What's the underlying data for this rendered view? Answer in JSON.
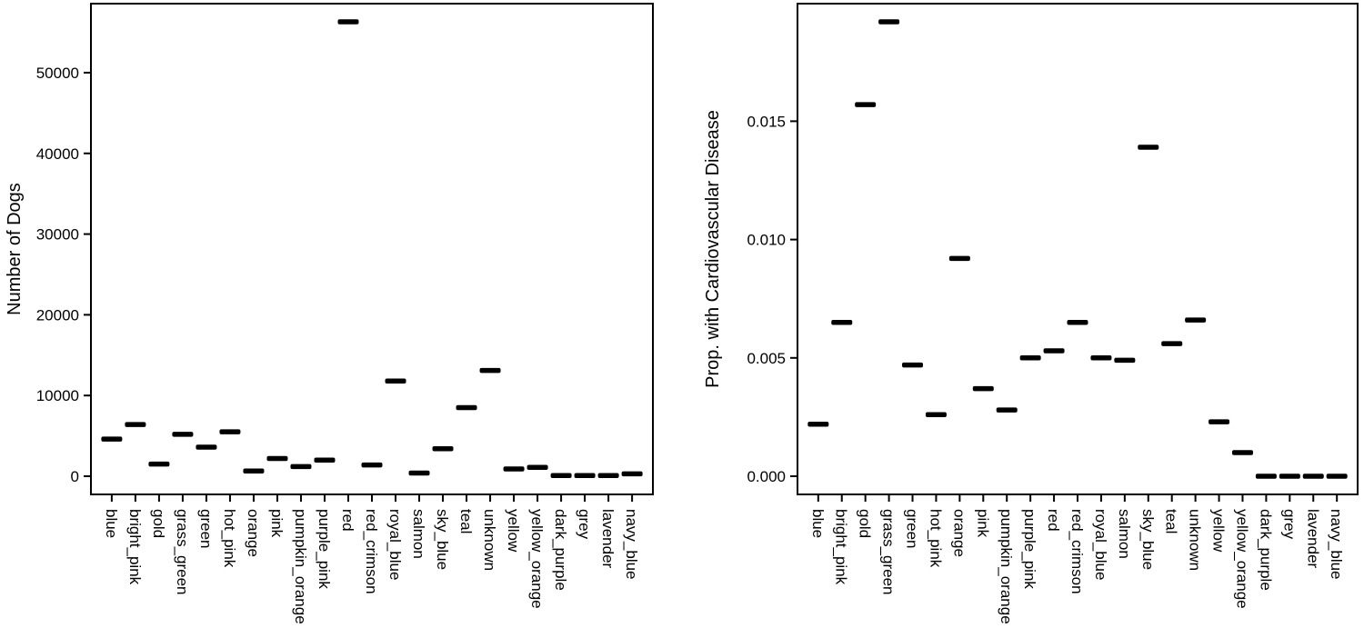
{
  "figure": {
    "background": "#ffffff",
    "ink": "#000000"
  },
  "chart_data": [
    {
      "type": "scatter",
      "marker": "horizontal-dash",
      "title": "",
      "xlabel": "",
      "ylabel": "Number of Dogs",
      "categories": [
        "blue",
        "bright_pink",
        "gold",
        "grass_green",
        "green",
        "hot_pink",
        "orange",
        "pink",
        "pumpkin_orange",
        "purple_pink",
        "red",
        "red_crimson",
        "royal_blue",
        "salmon",
        "sky_blue",
        "teal",
        "unknown",
        "yellow",
        "yellow_orange",
        "dark_purple",
        "grey",
        "lavender",
        "navy_blue"
      ],
      "values": [
        4600,
        6400,
        1500,
        5200,
        3600,
        5500,
        650,
        2200,
        1200,
        2000,
        56300,
        1400,
        11800,
        400,
        3400,
        8500,
        13100,
        900,
        1100,
        80,
        80,
        80,
        300
      ],
      "ylim": [
        0,
        56300
      ],
      "yticks": {
        "values": [
          0,
          10000,
          20000,
          30000,
          40000,
          50000
        ],
        "labels": [
          "0",
          "10000",
          "20000",
          "30000",
          "40000",
          "50000"
        ]
      },
      "grid": false,
      "legend": "none"
    },
    {
      "type": "scatter",
      "marker": "horizontal-dash",
      "title": "",
      "xlabel": "",
      "ylabel": "Prop. with Cardiovascular Disease",
      "categories": [
        "blue",
        "bright_pink",
        "gold",
        "grass_green",
        "green",
        "hot_pink",
        "orange",
        "pink",
        "pumpkin_orange",
        "purple_pink",
        "red",
        "red_crimson",
        "royal_blue",
        "salmon",
        "sky_blue",
        "teal",
        "unknown",
        "yellow",
        "yellow_orange",
        "dark_purple",
        "grey",
        "lavender",
        "navy_blue"
      ],
      "values": [
        0.0022,
        0.0065,
        0.0157,
        0.0192,
        0.0047,
        0.0026,
        0.0092,
        0.0037,
        0.0028,
        0.005,
        0.0053,
        0.0065,
        0.005,
        0.0049,
        0.0139,
        0.0056,
        0.0066,
        0.0023,
        0.001,
        0.0,
        0.0,
        0.0,
        0.0
      ],
      "ylim": [
        0,
        0.0192
      ],
      "yticks": {
        "values": [
          0,
          0.005,
          0.01,
          0.015
        ],
        "labels": [
          "0.000",
          "0.005",
          "0.010",
          "0.015"
        ]
      },
      "grid": false,
      "legend": "none"
    }
  ]
}
